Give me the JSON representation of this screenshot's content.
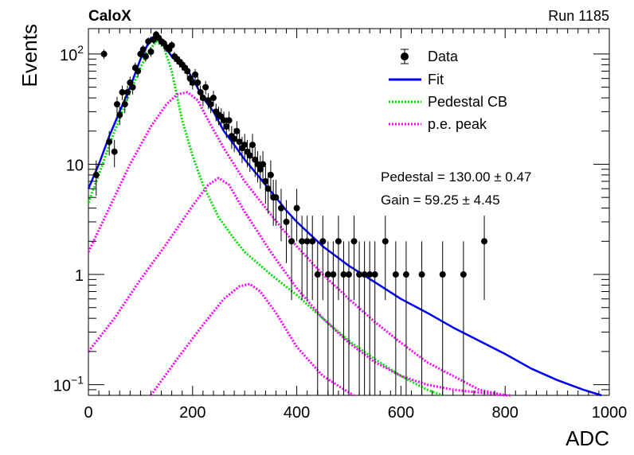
{
  "header": {
    "left": "CaloX",
    "right": "Run 1185"
  },
  "chart_data": {
    "type": "scatter",
    "xlabel": "ADC",
    "ylabel": "Events",
    "xlim": [
      0,
      1000
    ],
    "ylim": [
      0.08,
      170
    ],
    "yscale": "log",
    "xticks": [
      "0",
      "200",
      "400",
      "600",
      "800",
      "1000"
    ],
    "ytick_labels": [
      {
        "value": 100,
        "base": "10",
        "exp": "2"
      },
      {
        "value": 10,
        "base": "10",
        "exp": ""
      },
      {
        "value": 1,
        "base": "1",
        "exp": ""
      },
      {
        "value": 0.1,
        "base": "10",
        "exp": "−1"
      }
    ],
    "legend": {
      "placement": "top-right",
      "entries": [
        {
          "label": "Data",
          "style": "marker",
          "color": "#000000"
        },
        {
          "label": "Fit",
          "style": "line",
          "color": "#0000ff"
        },
        {
          "label": "Pedestal CB",
          "style": "dotted",
          "color": "#00e000"
        },
        {
          "label": "p.e. peak",
          "style": "dotted",
          "color": "#ff00ff"
        }
      ]
    },
    "annotations": [
      "Pedestal = 130.00 ± 0.47",
      "Gain = 59.25 ± 4.45"
    ],
    "series": [
      {
        "name": "Data",
        "kind": "points",
        "color": "#000000",
        "x": [
          15,
          30,
          40,
          50,
          55,
          60,
          65,
          70,
          75,
          80,
          85,
          90,
          95,
          100,
          105,
          110,
          115,
          120,
          125,
          130,
          135,
          140,
          145,
          150,
          155,
          160,
          165,
          170,
          175,
          180,
          185,
          190,
          195,
          200,
          205,
          210,
          215,
          220,
          225,
          230,
          235,
          240,
          245,
          250,
          255,
          260,
          265,
          270,
          275,
          280,
          285,
          290,
          295,
          300,
          305,
          310,
          315,
          320,
          325,
          330,
          335,
          340,
          345,
          350,
          355,
          360,
          370,
          380,
          390,
          400,
          410,
          420,
          430,
          440,
          450,
          460,
          470,
          480,
          490,
          500,
          510,
          520,
          530,
          540,
          550,
          570,
          590,
          610,
          640,
          680,
          720,
          760
        ],
        "y": [
          8,
          100,
          16,
          13,
          35,
          28,
          45,
          35,
          45,
          55,
          50,
          75,
          70,
          100,
          110,
          95,
          130,
          105,
          135,
          150,
          140,
          130,
          125,
          115,
          110,
          120,
          95,
          90,
          85,
          80,
          75,
          70,
          60,
          55,
          65,
          55,
          45,
          40,
          50,
          38,
          35,
          40,
          30,
          28,
          27,
          25,
          22,
          25,
          18,
          17,
          20,
          16,
          14,
          15,
          13,
          12,
          15,
          11,
          10,
          9,
          10,
          7,
          6,
          8,
          5,
          5,
          4,
          3,
          2,
          4,
          2,
          2,
          2,
          1,
          2,
          1,
          1,
          2,
          1,
          1,
          2,
          1,
          1,
          1,
          1,
          2,
          1,
          1,
          1,
          1,
          1,
          2
        ]
      },
      {
        "name": "Fit",
        "kind": "line",
        "color": "#0000ff",
        "x": [
          0,
          20,
          40,
          60,
          80,
          100,
          120,
          130,
          140,
          160,
          180,
          200,
          220,
          240,
          260,
          280,
          300,
          320,
          340,
          360,
          380,
          400,
          450,
          500,
          550,
          600,
          650,
          700,
          750,
          800,
          850,
          900,
          950,
          985
        ],
        "y": [
          6,
          10,
          18,
          30,
          50,
          90,
          140,
          145,
          130,
          95,
          85,
          60,
          40,
          30,
          20,
          15,
          11,
          8.5,
          6.5,
          5,
          3.8,
          3,
          1.8,
          1.2,
          0.85,
          0.6,
          0.45,
          0.33,
          0.25,
          0.19,
          0.14,
          0.11,
          0.09,
          0.08
        ]
      },
      {
        "name": "Pedestal CB",
        "kind": "dotted",
        "color": "#00e000",
        "x": [
          0,
          20,
          40,
          60,
          80,
          100,
          115,
          130,
          145,
          160,
          180,
          200,
          220,
          250,
          280,
          300,
          350,
          400,
          450,
          500,
          550,
          600,
          650,
          680
        ],
        "y": [
          4.5,
          8,
          15,
          26,
          45,
          75,
          105,
          130,
          115,
          70,
          25,
          12,
          6.5,
          3.3,
          2.1,
          1.6,
          1,
          0.65,
          0.4,
          0.25,
          0.17,
          0.12,
          0.09,
          0.08
        ]
      },
      {
        "name": "p.e. peak 1",
        "kind": "dotted",
        "color": "#ff00ff",
        "x": [
          0,
          40,
          80,
          120,
          150,
          170,
          190,
          210,
          230,
          260,
          300,
          350,
          400,
          450,
          500,
          550,
          600,
          650,
          700,
          750,
          800,
          810
        ],
        "y": [
          1.6,
          4,
          10,
          22,
          35,
          43,
          45,
          38,
          25,
          14,
          7,
          3.5,
          1.8,
          1,
          0.6,
          0.37,
          0.24,
          0.16,
          0.12,
          0.09,
          0.08,
          0.08
        ]
      },
      {
        "name": "p.e. peak 2",
        "kind": "dotted",
        "color": "#ff00ff",
        "x": [
          0,
          50,
          100,
          150,
          200,
          230,
          250,
          270,
          300,
          350,
          400,
          450,
          500,
          550,
          600,
          650,
          700,
          750,
          800
        ],
        "y": [
          0.2,
          0.4,
          0.9,
          1.9,
          4.2,
          6.5,
          7.5,
          6.5,
          3.7,
          1.6,
          0.75,
          0.4,
          0.24,
          0.16,
          0.12,
          0.1,
          0.09,
          0.085,
          0.08
        ]
      },
      {
        "name": "p.e. peak 3",
        "kind": "dotted",
        "color": "#ff00ff",
        "x": [
          120,
          170,
          220,
          260,
          290,
          310,
          330,
          360,
          400,
          450,
          500,
          510
        ],
        "y": [
          0.08,
          0.17,
          0.35,
          0.6,
          0.78,
          0.82,
          0.7,
          0.45,
          0.22,
          0.12,
          0.085,
          0.08
        ]
      }
    ]
  }
}
